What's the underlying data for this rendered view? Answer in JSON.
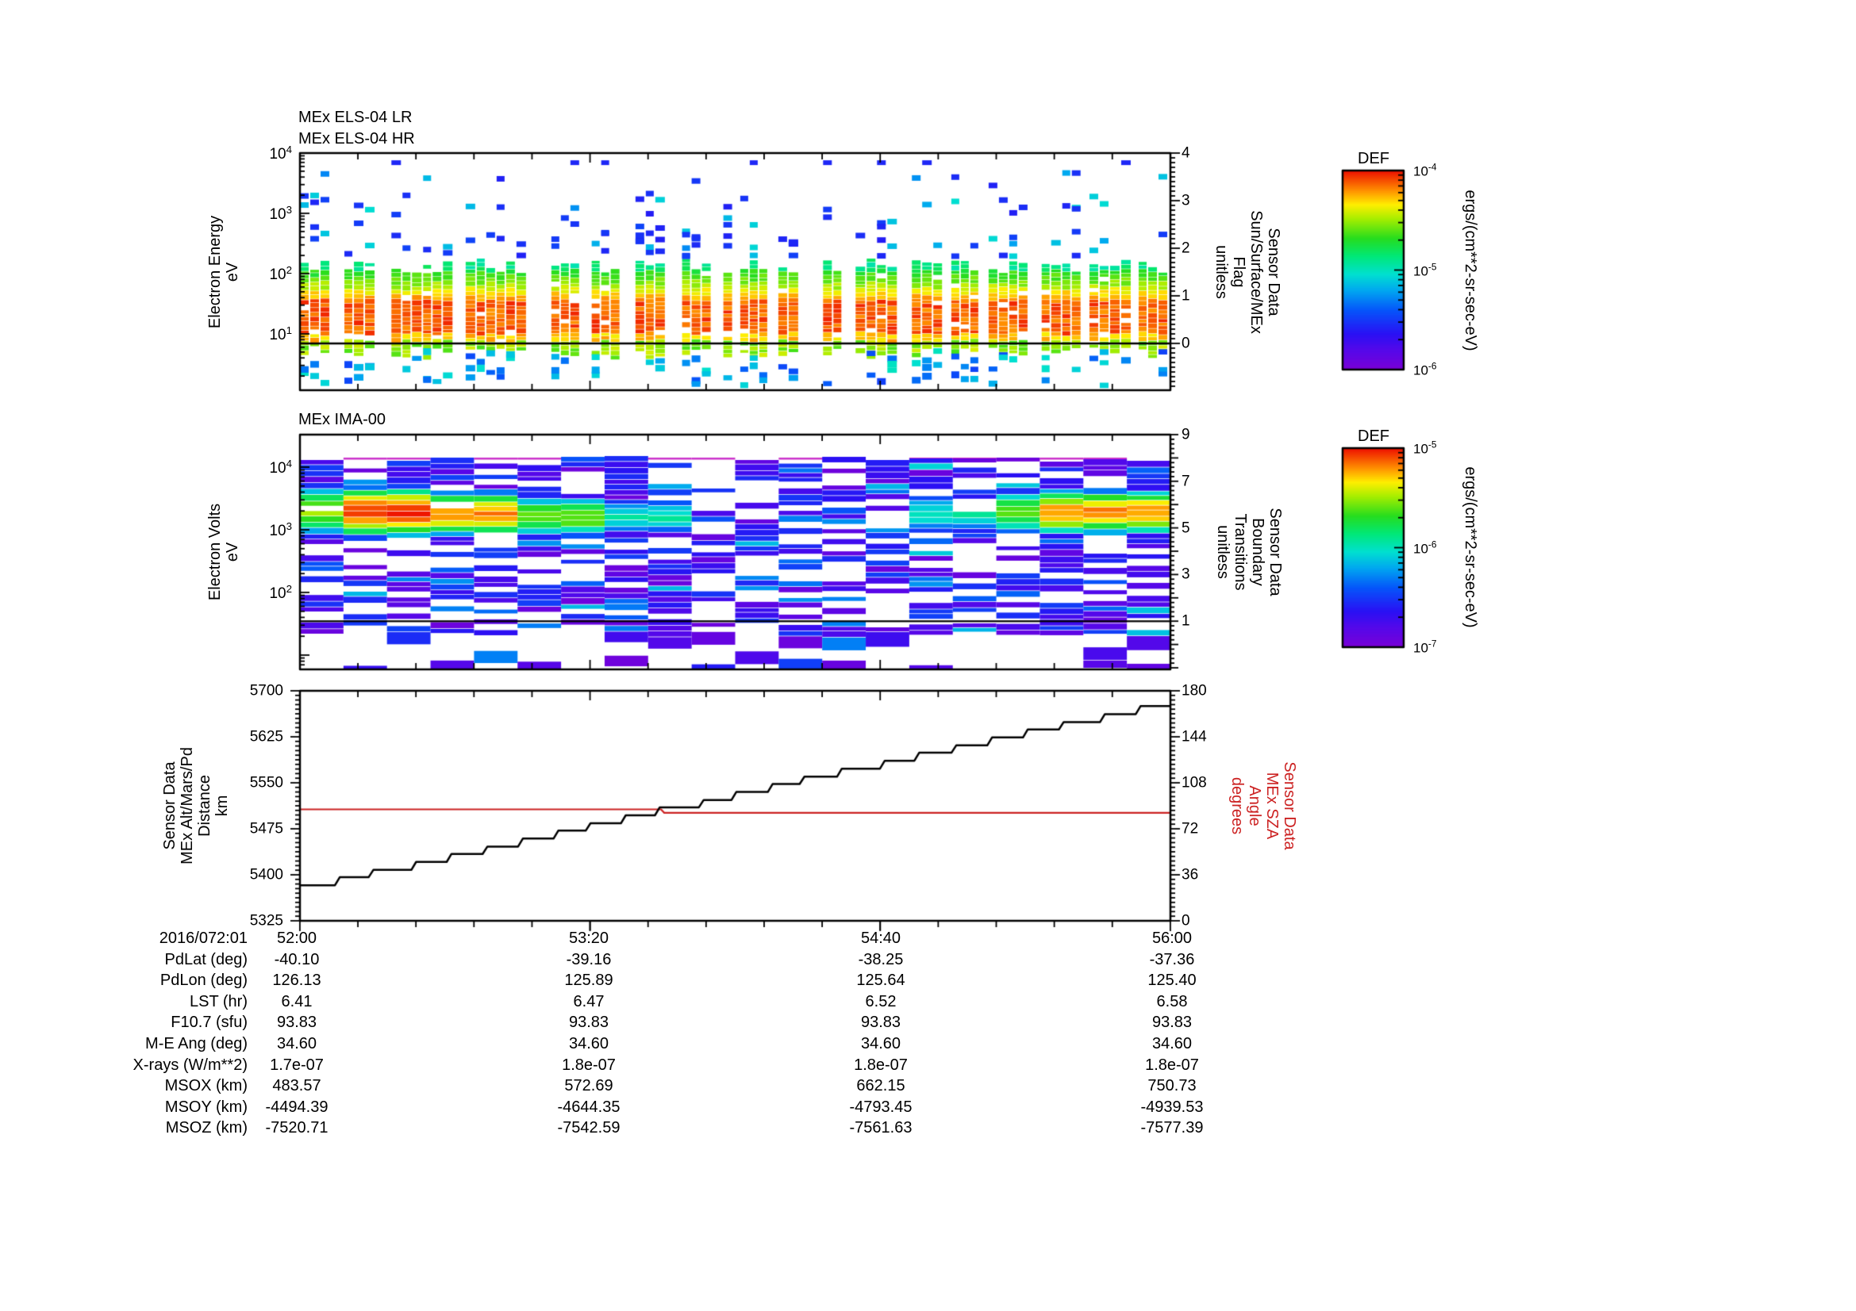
{
  "render_seed": 7,
  "colors": {
    "background": "#ffffff",
    "axis": "#000000",
    "sza_red": "#cc2222",
    "ima_magenta": "#cc33cc",
    "colormap_stops": [
      [
        0.0,
        "#7a00d6"
      ],
      [
        0.1,
        "#5408ea"
      ],
      [
        0.18,
        "#2a10f4"
      ],
      [
        0.3,
        "#0556fa"
      ],
      [
        0.4,
        "#00a8f0"
      ],
      [
        0.48,
        "#00e0d0"
      ],
      [
        0.57,
        "#00e878"
      ],
      [
        0.66,
        "#26dd1e"
      ],
      [
        0.76,
        "#a8ee00"
      ],
      [
        0.83,
        "#ffee00"
      ],
      [
        0.9,
        "#ff9100"
      ],
      [
        1.0,
        "#ee1000"
      ]
    ]
  },
  "panels": {
    "els": {
      "title_lines": [
        "MEx ELS-04 LR",
        "MEx ELS-04 HR"
      ],
      "left_axis": {
        "label_lines": [
          "Electron Energy",
          "eV"
        ],
        "tick_labels": [
          "10^4",
          "10^3",
          "10^2",
          "10^1"
        ]
      },
      "right_axis": {
        "label_lines": [
          "Sensor Data",
          "Sun/Surface/MEx",
          "Flag",
          "unitless"
        ],
        "tick_labels": [
          "4",
          "3",
          "2",
          "1",
          "0"
        ]
      }
    },
    "ima": {
      "title_lines": [
        "MEx IMA-00"
      ],
      "left_axis": {
        "label_lines": [
          "Electron Volts",
          "eV"
        ],
        "tick_labels": [
          "10^4",
          "10^3",
          "10^2"
        ]
      },
      "right_axis": {
        "label_lines": [
          "Sensor Data",
          "Boundary",
          "Transitions",
          "unitless"
        ],
        "tick_labels": [
          "9",
          "7",
          "5",
          "3",
          "1"
        ]
      }
    },
    "alt": {
      "left_axis": {
        "label_lines": [
          "Sensor Data",
          "MEx Alt/Mars/Pd",
          "Distance",
          "km"
        ],
        "tick_labels": [
          "5700",
          "5625",
          "5550",
          "5475",
          "5400",
          "5325"
        ]
      },
      "right_axis": {
        "label_lines": [
          "Sensor Data",
          "MEx SZA",
          "Angle",
          "degrees"
        ],
        "tick_labels": [
          "180",
          "144",
          "108",
          "72",
          "36",
          "0"
        ]
      }
    }
  },
  "colorbars": [
    {
      "title": "DEF",
      "tick_labels": [
        "10^-4",
        "10^-5",
        "10^-6"
      ],
      "unit": "ergs/(cm**2-sr-sec-eV)"
    },
    {
      "title": "DEF",
      "tick_labels": [
        "10^-5",
        "10^-6",
        "10^-7"
      ],
      "unit": "ergs/(cm**2-sr-sec-eV)"
    }
  ],
  "table": {
    "row_labels": [
      "2016/072:01",
      "PdLat (deg)",
      "PdLon (deg)",
      "LST (hr)",
      "F10.7 (sfu)",
      "M-E Ang (deg)",
      "X-rays (W/m**2)",
      "MSOX (km)",
      "MSOY (km)",
      "MSOZ (km)"
    ],
    "columns": [
      [
        "52:00",
        "-40.10",
        "126.13",
        "6.41",
        "93.83",
        "34.60",
        "1.7e-07",
        "483.57",
        "-4494.39",
        "-7520.71"
      ],
      [
        "53:20",
        "-39.16",
        "125.89",
        "6.47",
        "93.83",
        "34.60",
        "1.8e-07",
        "572.69",
        "-4644.35",
        "-7542.59"
      ],
      [
        "54:40",
        "-38.25",
        "125.64",
        "6.52",
        "93.83",
        "34.60",
        "1.8e-07",
        "662.15",
        "-4793.45",
        "-7561.63"
      ],
      [
        "56:00",
        "-37.36",
        "125.40",
        "6.58",
        "93.83",
        "34.60",
        "1.8e-07",
        "750.73",
        "-4939.53",
        "-7577.39"
      ]
    ]
  },
  "chart_data": [
    {
      "id": "els",
      "type": "heatmap",
      "title": "MEx ELS-04 LR / MEx ELS-04 HR",
      "ylabel": "Electron Energy (eV)",
      "y_scale": "log",
      "y_range_eV": [
        1.2,
        10000
      ],
      "x_start": "2016/072:01 52:00",
      "x_end": "2016/072:01 56:00",
      "x_tick_times": [
        "52:00",
        "53:20",
        "54:40",
        "56:00"
      ],
      "colorbar": {
        "title": "DEF",
        "unit": "ergs/(cm**2-sr-sec-eV)",
        "range": [
          1e-06,
          0.0001
        ]
      },
      "right_axis": {
        "label": "Sensor Data Sun/Surface/MEx Flag (unitless)",
        "range": [
          -1,
          4
        ],
        "trace_value": 0
      },
      "features": [
        "intense electron band ~5-150 eV in every time column, peak flux (red, ~1e-4) at 10-40 eV",
        "scattered blue/cyan bursts 200 eV - 9 keV",
        "sparse cyan/blue patches below 7 eV",
        "short vertical data gaps every ~30 s",
        "flat black flag trace at 0 across the panel"
      ]
    },
    {
      "id": "ima",
      "type": "heatmap",
      "title": "MEx IMA-00",
      "ylabel": "Electron Volts (eV)",
      "y_scale": "log",
      "y_range_eV": [
        6,
        33000
      ],
      "x_tick_times": [
        "52:00",
        "53:20",
        "54:40",
        "56:00"
      ],
      "colorbar": {
        "title": "DEF",
        "unit": "ergs/(cm**2-sr-sec-eV)",
        "range": [
          1e-07,
          1e-05
        ]
      },
      "right_axis": {
        "label": "Sensor Data Boundary Transitions (unitless)",
        "range": [
          -1,
          9
        ],
        "trace_value": 1
      },
      "hot_regions": [
        {
          "x0": 0.0,
          "x1": 0.07,
          "c": 3.3,
          "halfw": 0.45,
          "peak": 0.74
        },
        {
          "x0": 0.07,
          "x1": 0.145,
          "c": 3.28,
          "halfw": 0.45,
          "peak": 0.99
        },
        {
          "x0": 0.145,
          "x1": 0.24,
          "c": 3.25,
          "halfw": 0.4,
          "peak": 0.9
        },
        {
          "x0": 0.24,
          "x1": 0.34,
          "c": 3.2,
          "halfw": 0.35,
          "peak": 0.72
        },
        {
          "x0": 0.34,
          "x1": 0.45,
          "c": 3.2,
          "halfw": 0.3,
          "peak": 0.52
        },
        {
          "x0": 0.72,
          "x1": 0.79,
          "c": 3.25,
          "halfw": 0.33,
          "peak": 0.52
        },
        {
          "x0": 0.79,
          "x1": 0.85,
          "c": 3.28,
          "halfw": 0.38,
          "peak": 0.68
        },
        {
          "x0": 0.85,
          "x1": 1.0,
          "c": 3.28,
          "halfw": 0.4,
          "peak": 0.9
        }
      ],
      "features": [
        "hot ion population 0.7-7 keV from 52:00 to ~53:00 (green-yellow-red, max ~1e-5 near 1.5-2.5 keV)",
        "second hot population ~55:00-56:00 at 1-4 keV",
        "background of purple/indigo/blue stripes with white gaps across full energy range",
        "thin magenta row near 1.5e4 eV",
        "flat black boundary-transitions trace at 1"
      ]
    },
    {
      "id": "alt_sza",
      "type": "line",
      "x_range_s": [
        0,
        240
      ],
      "x_tick_times": [
        "52:00",
        "53:20",
        "54:40",
        "56:00"
      ],
      "y_left": {
        "label": "Sensor Data MEx Alt/Mars/Pd Distance (km)",
        "range": [
          5325,
          5700
        ]
      },
      "y_right": {
        "label": "Sensor Data MEx SZA Angle (degrees)",
        "range": [
          0,
          180
        ]
      },
      "series": [
        {
          "name": "MEx Alt/Mars/Pd Distance (km)",
          "color": "#000000",
          "style": "steps",
          "step_seconds": 10,
          "values_km": [
            5383,
            5396,
            5408,
            5421,
            5434,
            5446,
            5459,
            5472,
            5484,
            5497,
            5510,
            5522,
            5535,
            5548,
            5560,
            5573,
            5586,
            5599,
            5611,
            5624,
            5637,
            5649,
            5662,
            5675
          ]
        },
        {
          "name": "MEx SZA (degrees)",
          "color": "#cc2222",
          "style": "flat-segments",
          "segments": [
            {
              "t_start_s": 0,
              "t_end_s": 100,
              "deg": 87.2
            },
            {
              "t_start_s": 100,
              "t_end_s": 240,
              "deg": 84.5
            }
          ]
        }
      ]
    }
  ]
}
